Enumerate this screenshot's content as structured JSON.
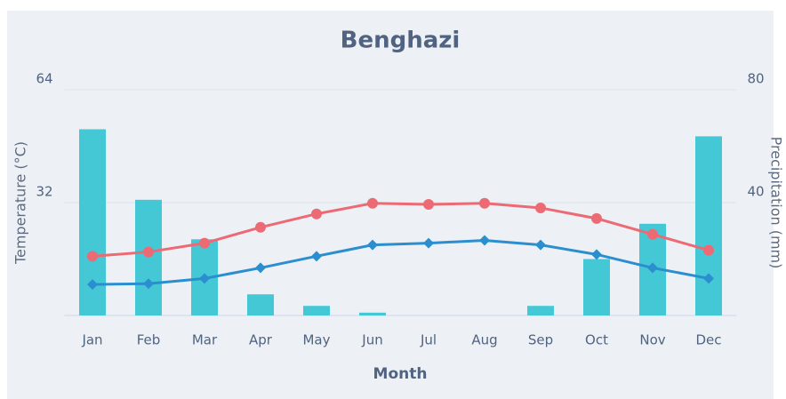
{
  "chart_data": {
    "type": "combo",
    "title": "Benghazi",
    "x_label": "Month",
    "y_label": "Temperature (°C)",
    "y2_label": "Precipitation (mm)",
    "categories": [
      "Jan",
      "Feb",
      "Mar",
      "Apr",
      "May",
      "Jun",
      "Jul",
      "Aug",
      "Sep",
      "Oct",
      "Nov",
      "Dec"
    ],
    "ylim": [
      0,
      64
    ],
    "yticks": [
      32,
      64
    ],
    "y2lim": [
      0,
      80
    ],
    "y2ticks": [
      40,
      80
    ],
    "grid": true,
    "series": [
      {
        "type": "bar",
        "axis": "y2",
        "color": "#45c8d6",
        "values": [
          66,
          41,
          27,
          7.5,
          3.4,
          1,
          0,
          0,
          3.4,
          20,
          32.5,
          63.5
        ]
      },
      {
        "type": "line",
        "color": "#ec6a74",
        "values": [
          16.8,
          18,
          20.5,
          25,
          28.8,
          31.8,
          31.5,
          31.8,
          30.5,
          27.5,
          23,
          18.5
        ]
      },
      {
        "type": "line",
        "color": "#2b8fcf",
        "values": [
          8.8,
          9,
          10.5,
          13.5,
          16.8,
          20,
          20.5,
          21.3,
          20,
          17.3,
          13.5,
          10.5
        ]
      }
    ]
  }
}
